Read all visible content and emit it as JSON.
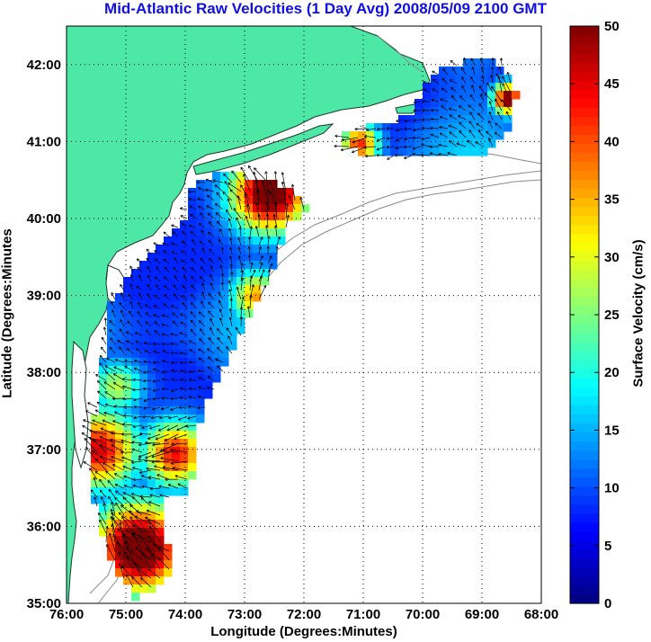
{
  "title": "Mid-Atlantic Raw Velocities (1 Day Avg) 2008/05/09 2100 GMT",
  "map": {
    "x_axis_label": "Longitude (Degrees:Minutes)",
    "y_axis_label": "Latitude (Degrees:Minutes",
    "lon_range": [
      -76,
      -68
    ],
    "lat_range": [
      35,
      42.5
    ],
    "lon_ticks": [
      {
        "value": -76,
        "label": "76:00"
      },
      {
        "value": -75,
        "label": "75:00"
      },
      {
        "value": -74,
        "label": "74:00"
      },
      {
        "value": -73,
        "label": "73:00"
      },
      {
        "value": -72,
        "label": "72:00"
      },
      {
        "value": -71,
        "label": "71:00"
      },
      {
        "value": -70,
        "label": "70:00"
      },
      {
        "value": -69,
        "label": "69:00"
      },
      {
        "value": -68,
        "label": "68:00"
      }
    ],
    "lat_ticks": [
      {
        "value": 35,
        "label": "35:00"
      },
      {
        "value": 36,
        "label": "36:00"
      },
      {
        "value": 37,
        "label": "37:00"
      },
      {
        "value": 38,
        "label": "38:00"
      },
      {
        "value": 39,
        "label": "39:00"
      },
      {
        "value": 40,
        "label": "40:00"
      },
      {
        "value": 41,
        "label": "41:00"
      },
      {
        "value": 42,
        "label": "42:00"
      }
    ],
    "grid": "dotted",
    "colors": {
      "land": "#4de8a6",
      "coastline": "#1a3a2a",
      "bathymetry": "#8a8a8a",
      "arrows": "#000000",
      "grid": "#000000"
    }
  },
  "colorbar": {
    "label": "Surface Velocity (cm/s)",
    "min": 0,
    "max": 50,
    "ticks": [
      {
        "value": 0,
        "label": "0"
      },
      {
        "value": 5,
        "label": "5"
      },
      {
        "value": 10,
        "label": "10"
      },
      {
        "value": 15,
        "label": "15"
      },
      {
        "value": 20,
        "label": "20"
      },
      {
        "value": 25,
        "label": "25"
      },
      {
        "value": 30,
        "label": "30"
      },
      {
        "value": 35,
        "label": "35"
      },
      {
        "value": 40,
        "label": "40"
      },
      {
        "value": 45,
        "label": "45"
      },
      {
        "value": 50,
        "label": "50"
      }
    ],
    "colormap": "jet"
  }
}
